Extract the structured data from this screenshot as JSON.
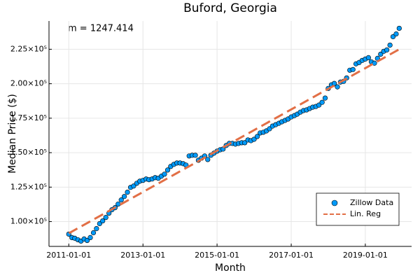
{
  "chart_data": {
    "type": "scatter",
    "title": "Buford, Georgia",
    "xlabel": "Month",
    "ylabel": "Median Price ($)",
    "annotation": "m = 1247.414",
    "xlim": [
      "2010-06-20",
      "2020-04-01"
    ],
    "xticks": [
      "2011-01-01",
      "2013-01-01",
      "2015-01-01",
      "2017-01-01",
      "2019-01-01"
    ],
    "ylim": [
      82000,
      245500
    ],
    "yticks": [
      {
        "value": 100000,
        "label": "1.00×10⁵"
      },
      {
        "value": 125000,
        "label": "1.25×10⁵"
      },
      {
        "value": 150000,
        "label": "1.50×10⁵"
      },
      {
        "value": 175000,
        "label": "1.75×10⁵"
      },
      {
        "value": 200000,
        "label": "2.00×10⁵"
      },
      {
        "value": 225000,
        "label": "2.25×10⁵"
      }
    ],
    "grid": true,
    "legend": "lower right",
    "series": [
      {
        "name": "Zillow Data",
        "type": "scatter",
        "color": "#009af9",
        "x": [
          "2011-01-01",
          "2011-02-01",
          "2011-03-01",
          "2011-04-01",
          "2011-05-01",
          "2011-06-01",
          "2011-07-01",
          "2011-08-01",
          "2011-09-01",
          "2011-10-01",
          "2011-11-01",
          "2011-12-01",
          "2012-01-01",
          "2012-02-01",
          "2012-03-01",
          "2012-04-01",
          "2012-05-01",
          "2012-06-01",
          "2012-07-01",
          "2012-08-01",
          "2012-09-01",
          "2012-10-01",
          "2012-11-01",
          "2012-12-01",
          "2013-01-01",
          "2013-02-01",
          "2013-03-01",
          "2013-04-01",
          "2013-05-01",
          "2013-06-01",
          "2013-07-01",
          "2013-08-01",
          "2013-09-01",
          "2013-10-01",
          "2013-11-01",
          "2013-12-01",
          "2014-01-01",
          "2014-02-01",
          "2014-03-01",
          "2014-04-01",
          "2014-05-01",
          "2014-06-01",
          "2014-07-01",
          "2014-08-01",
          "2014-09-01",
          "2014-10-01",
          "2014-11-01",
          "2014-12-01",
          "2015-01-01",
          "2015-02-01",
          "2015-03-01",
          "2015-04-01",
          "2015-05-01",
          "2015-06-01",
          "2015-07-01",
          "2015-08-01",
          "2015-09-01",
          "2015-10-01",
          "2015-11-01",
          "2015-12-01",
          "2016-01-01",
          "2016-02-01",
          "2016-03-01",
          "2016-04-01",
          "2016-05-01",
          "2016-06-01",
          "2016-07-01",
          "2016-08-01",
          "2016-09-01",
          "2016-10-01",
          "2016-11-01",
          "2016-12-01",
          "2017-01-01",
          "2017-02-01",
          "2017-03-01",
          "2017-04-01",
          "2017-05-01",
          "2017-06-01",
          "2017-07-01",
          "2017-08-01",
          "2017-09-01",
          "2017-10-01",
          "2017-11-01",
          "2017-12-01",
          "2018-01-01",
          "2018-02-01",
          "2018-03-01",
          "2018-04-01",
          "2018-05-01",
          "2018-06-01",
          "2018-07-01",
          "2018-08-01",
          "2018-09-01",
          "2018-10-01",
          "2018-11-01",
          "2018-12-01",
          "2019-01-01",
          "2019-02-01",
          "2019-03-01",
          "2019-04-01",
          "2019-05-01",
          "2019-06-01",
          "2019-07-01",
          "2019-08-01",
          "2019-09-01",
          "2019-10-01",
          "2019-11-01",
          "2019-12-01"
        ],
        "values": [
          90900,
          88400,
          87900,
          86800,
          85800,
          87400,
          86300,
          88400,
          91900,
          94900,
          98500,
          100500,
          103000,
          106100,
          108600,
          110100,
          112700,
          115700,
          118200,
          121300,
          124800,
          125800,
          127800,
          129300,
          129900,
          130900,
          130400,
          130900,
          131900,
          131400,
          132900,
          134400,
          137400,
          140000,
          141500,
          142500,
          142500,
          142000,
          141000,
          147600,
          148100,
          148100,
          144500,
          146000,
          147600,
          145000,
          148100,
          149600,
          151100,
          152100,
          152600,
          155200,
          156700,
          156700,
          156200,
          156700,
          157200,
          157200,
          159200,
          158700,
          159700,
          161700,
          164300,
          164800,
          165800,
          167300,
          169300,
          170300,
          171300,
          172400,
          173400,
          174400,
          175900,
          176900,
          177900,
          179400,
          180500,
          181000,
          182000,
          183000,
          183500,
          184500,
          186500,
          189600,
          196600,
          199200,
          200200,
          197700,
          201200,
          201700,
          204200,
          209800,
          210300,
          214400,
          215400,
          216900,
          217900,
          218900,
          215900,
          214900,
          218400,
          221400,
          223500,
          224500,
          228000,
          234100,
          236100,
          240200
        ]
      },
      {
        "name": "Lin. Reg",
        "type": "line",
        "color": "#e26f46",
        "dashed": true,
        "x": [
          "2011-01-01",
          "2019-12-01"
        ],
        "values": [
          91500,
          224970
        ]
      }
    ]
  }
}
